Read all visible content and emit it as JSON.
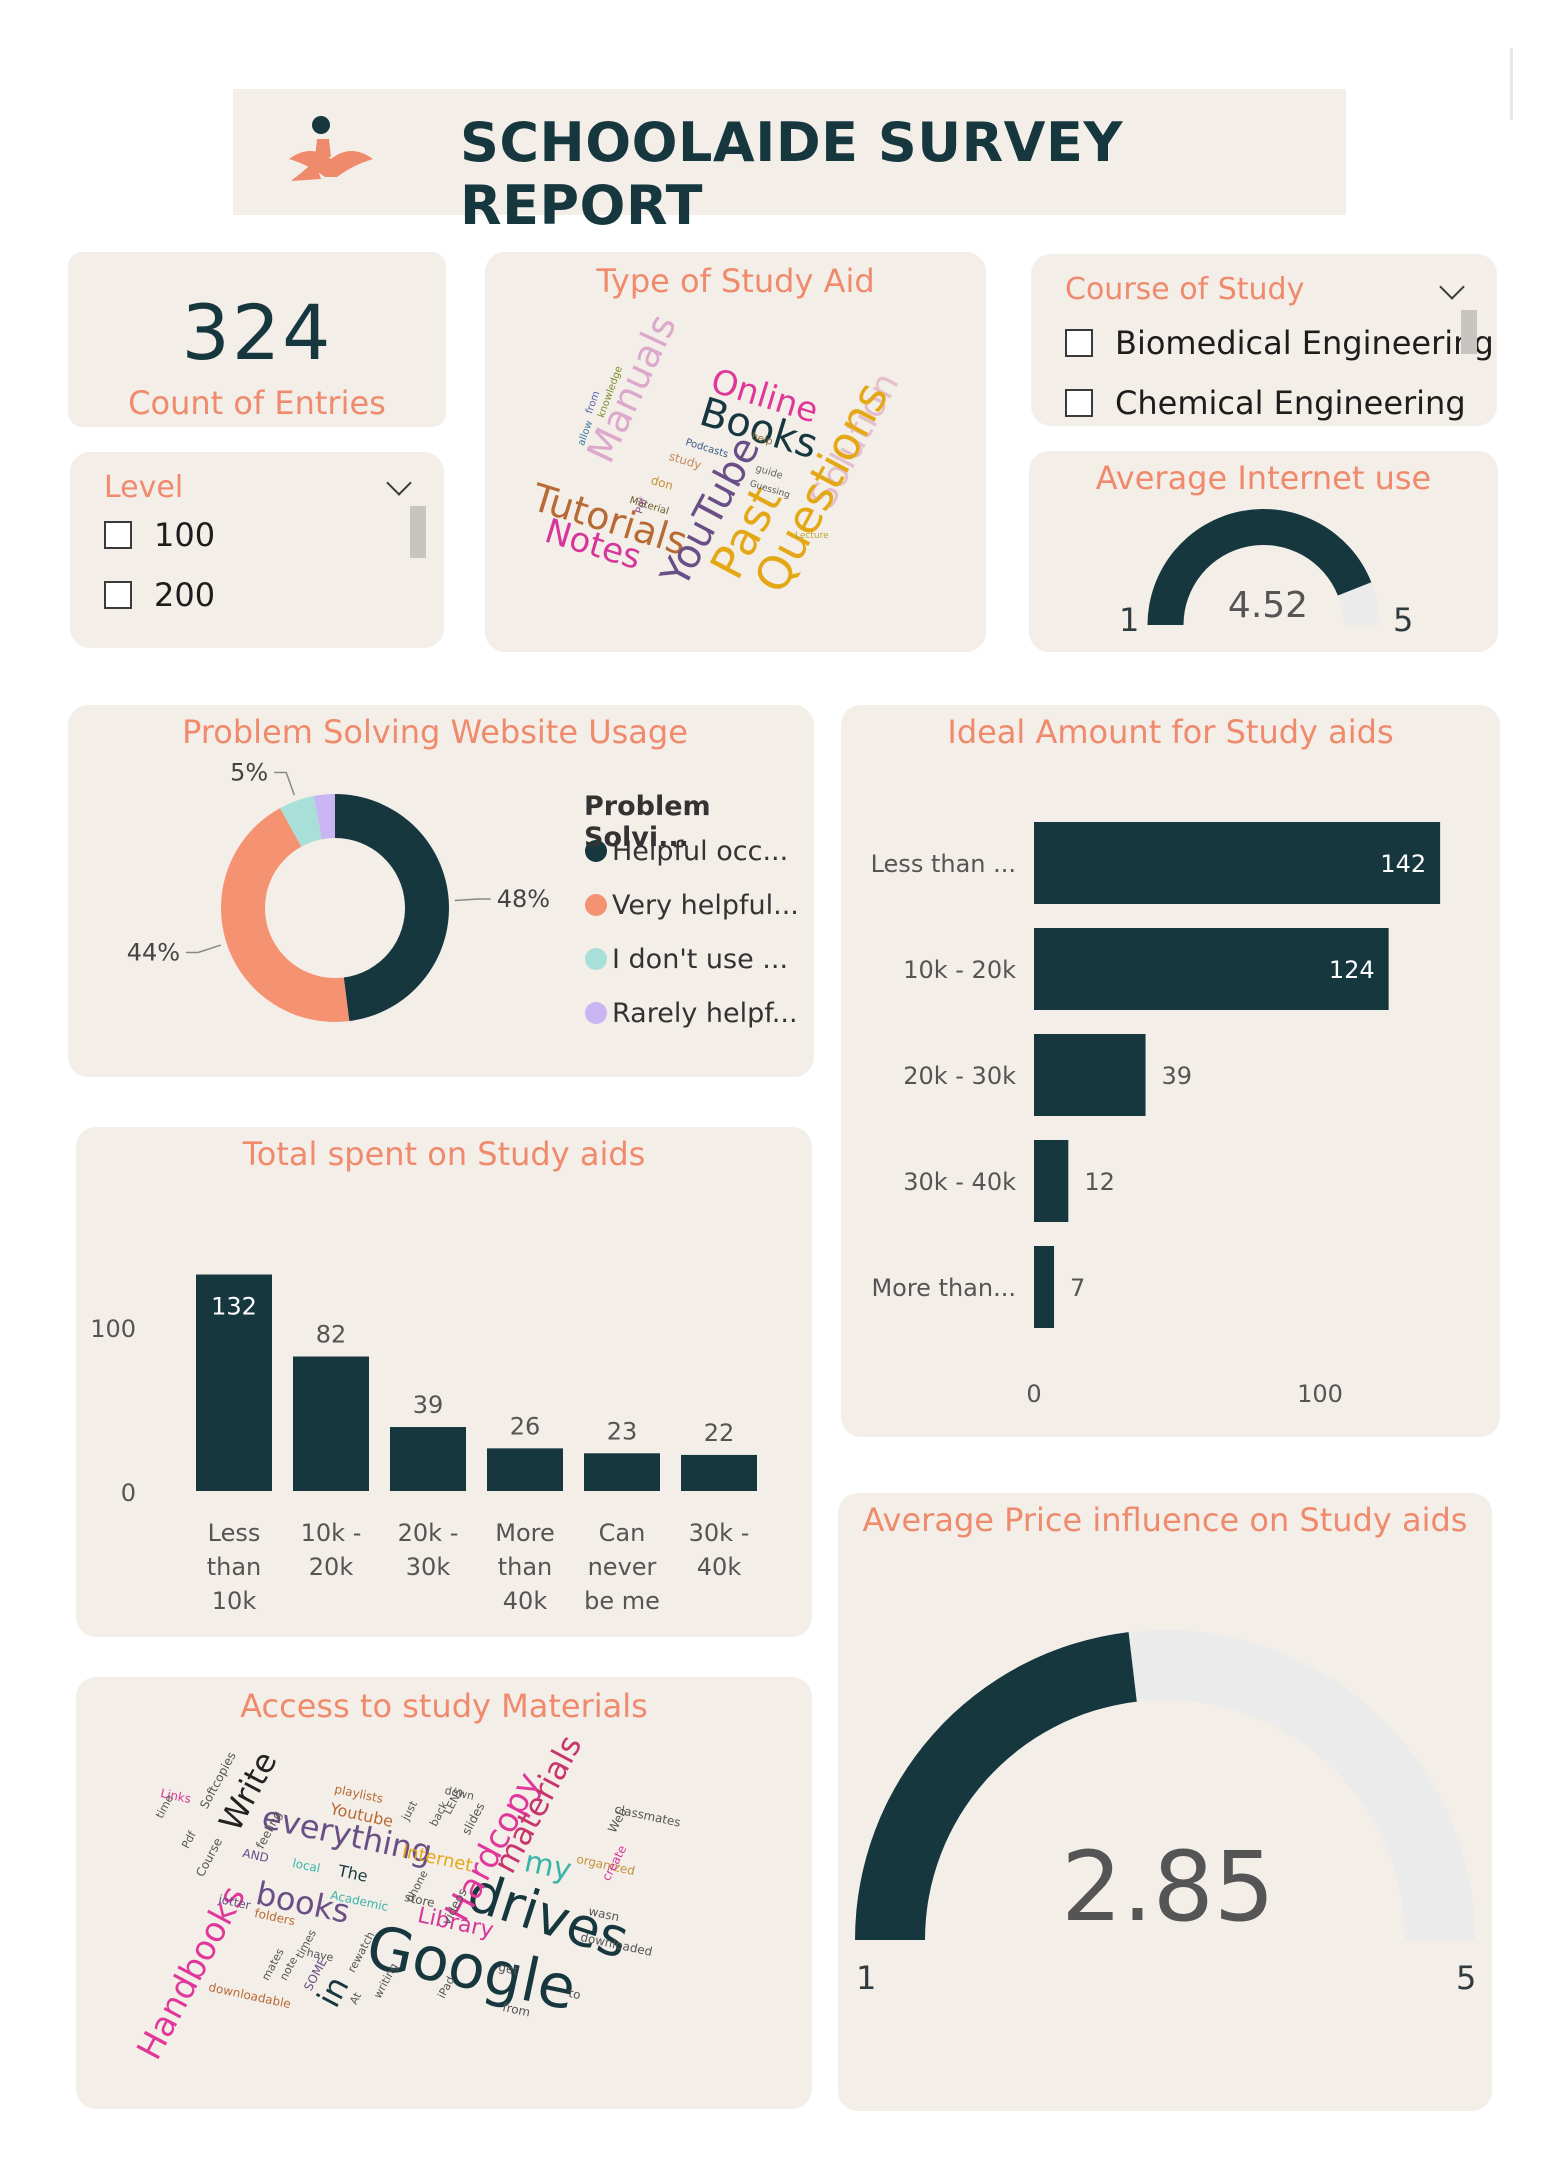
{
  "header": {
    "title": "SCHOOLAIDE SURVEY REPORT",
    "logo_icon": "reader-figure-icon"
  },
  "kpi": {
    "value": "324",
    "label": "Count of Entries"
  },
  "level_slicer": {
    "title": "Level",
    "options": [
      "100",
      "200"
    ]
  },
  "course_slicer": {
    "title": "Course of Study",
    "options": [
      "Biomedical Engineering",
      "Chemical Engineering"
    ]
  },
  "study_aid_cloud": {
    "title": "Type of Study Aid",
    "words": [
      "Online",
      "Books",
      "Manuals",
      "Solution",
      "Tutorials",
      "Notes",
      "YouTube",
      "Past",
      "Questions",
      "from",
      "knowledge",
      "allow",
      "Podcasts",
      "help",
      "study",
      "guide",
      "Material",
      "don",
      "Pdf",
      "Guessing",
      "Lecture"
    ]
  },
  "internet_gauge": {
    "title": "Average Internet use",
    "min": "1",
    "max": "5",
    "value": "4.52",
    "value_num": 4.52,
    "min_num": 1,
    "max_num": 5
  },
  "colors": {
    "accent": "#f08a6c",
    "dark": "#17373f",
    "card": "#f3eee8",
    "track": "#ebebeb"
  },
  "chart_data": [
    {
      "type": "pie",
      "title": "Problem Solving Website Usage",
      "legend_title": "Problem Solvi...",
      "legend_position": "right",
      "categories": [
        "Helpful occ...",
        "Very helpful...",
        "I don't use ...",
        "Rarely helpf..."
      ],
      "values": [
        48,
        44,
        5,
        3
      ],
      "colors": [
        "#17373f",
        "#f59272",
        "#a8dfd8",
        "#c9b5f2"
      ],
      "labels": [
        "48%",
        "44%",
        "5%",
        ""
      ]
    },
    {
      "type": "bar",
      "orientation": "horizontal",
      "title": "Ideal Amount for Study aids",
      "categories": [
        "Less than ...",
        "10k - 20k",
        "20k - 30k",
        "30k - 40k",
        "More than..."
      ],
      "values": [
        142,
        124,
        39,
        12,
        7
      ],
      "xlim": [
        0,
        150
      ],
      "ticks": [
        "0",
        "100"
      ],
      "grid": false
    },
    {
      "type": "bar",
      "title": "Total spent on Study aids",
      "categories": [
        "Less than 10k",
        "10k - 20k",
        "20k - 30k",
        "More than 40k",
        "Can never be me",
        "30k - 40k"
      ],
      "category_lines": [
        [
          "Less",
          "than",
          "10k"
        ],
        [
          "10k -",
          "20k"
        ],
        [
          "20k -",
          "30k"
        ],
        [
          "More",
          "than",
          "40k"
        ],
        [
          "Can",
          "never",
          "be me"
        ],
        [
          "30k -",
          "40k"
        ]
      ],
      "values": [
        132,
        82,
        39,
        26,
        23,
        22
      ],
      "ylim": [
        0,
        132
      ],
      "ticks": [
        "0",
        "100"
      ],
      "grid": false
    }
  ],
  "materials_cloud": {
    "title": "Access to study Materials",
    "words": [
      "Google",
      "drives",
      "Handbooks",
      "Hardcopy",
      "materials",
      "everything",
      "books",
      "Write",
      "in",
      "my",
      "Library",
      "Internet",
      "Youtube",
      "playlists",
      "Softcopies",
      "Links",
      "time",
      "Course",
      "feeling",
      "jotter",
      "folders",
      "downloadable",
      "classmates",
      "Web",
      "organized",
      "create",
      "wasn",
      "downloaded",
      "SOME",
      "writing",
      "from",
      "to",
      "get",
      "phone",
      "videos",
      "The",
      "Academic",
      "local",
      "slides",
      "down",
      "back",
      "LENS",
      "store",
      "rewatch",
      "have",
      "times",
      "mates",
      "note",
      "AND",
      "Pdf",
      "iPad",
      "At",
      "just"
    ]
  },
  "price_gauge": {
    "title": "Average Price influence on Study aids",
    "min": "1",
    "max": "5",
    "value": "2.85",
    "value_num": 2.85,
    "min_num": 1,
    "max_num": 5
  }
}
